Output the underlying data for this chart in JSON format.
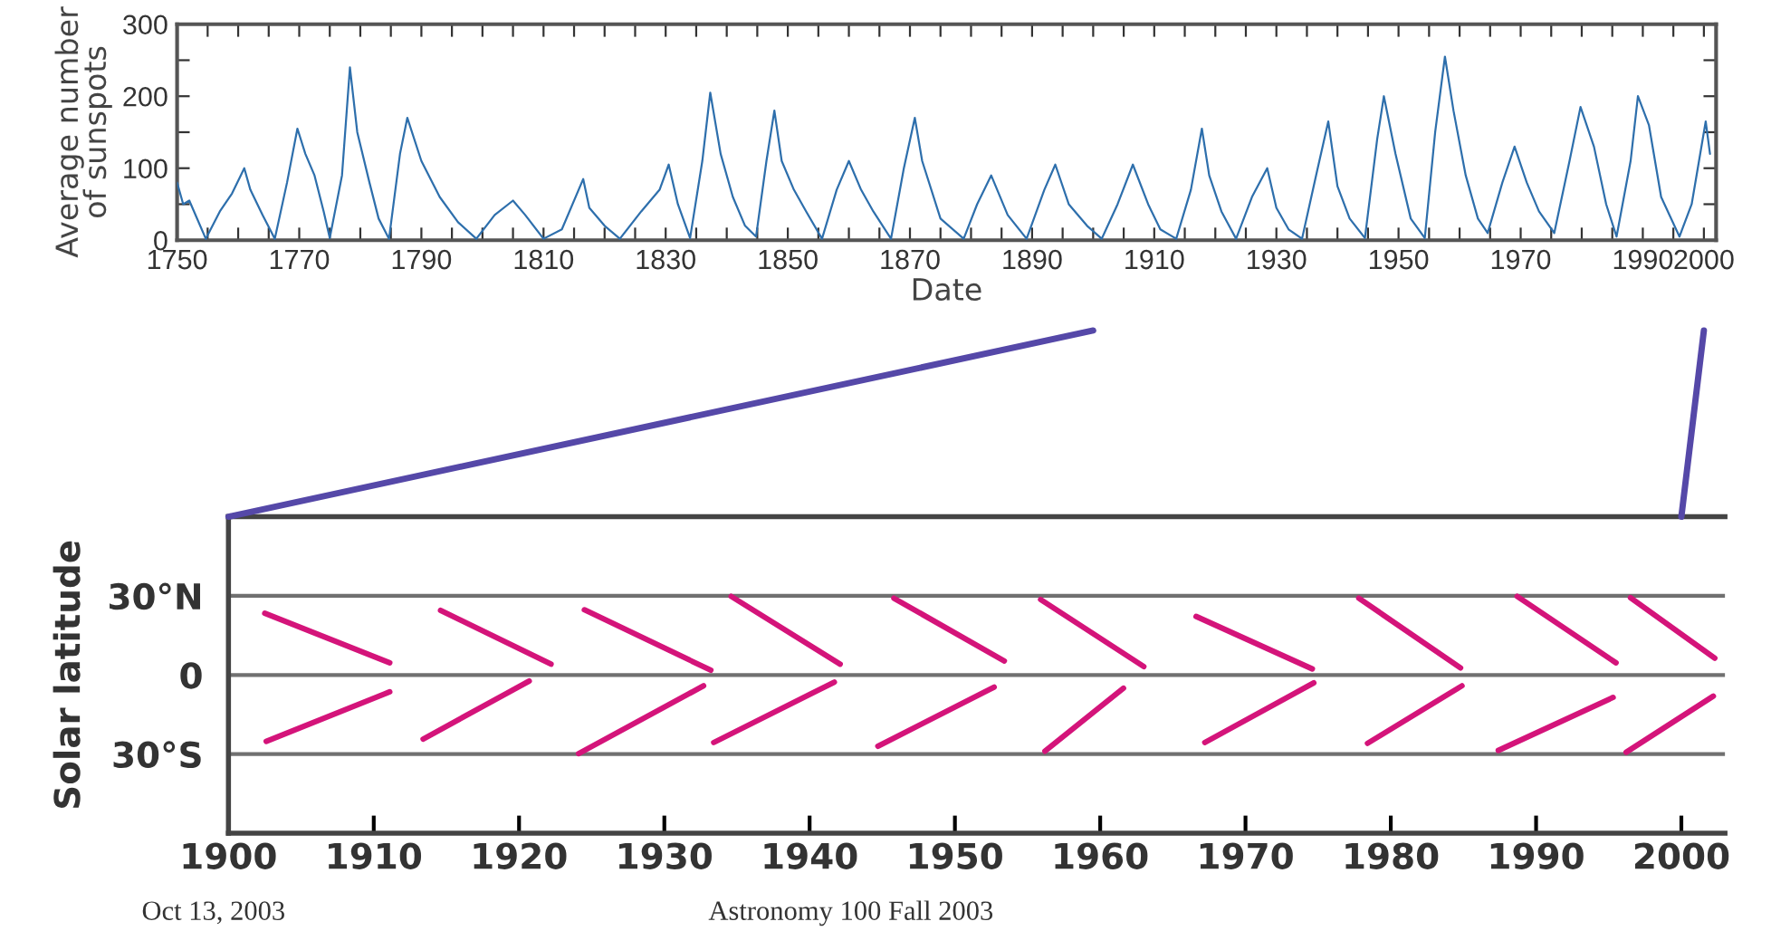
{
  "chart_data": [
    {
      "type": "line",
      "xlabel": "Date",
      "ylabel": "Average number\nof sunspots",
      "color": "#2e6fac",
      "x": [
        1750,
        1751,
        1752,
        1754.7,
        1757,
        1759,
        1761,
        1762,
        1764,
        1766,
        1768,
        1769.7,
        1771,
        1772.5,
        1774,
        1775,
        1777,
        1778.3,
        1779.5,
        1781.5,
        1783,
        1784.7,
        1786.5,
        1787.7,
        1790,
        1793,
        1796,
        1799,
        1802,
        1805,
        1807,
        1810,
        1813,
        1816.5,
        1817.5,
        1820,
        1822.5,
        1826,
        1829,
        1830.5,
        1832,
        1834,
        1836,
        1837.3,
        1839,
        1841,
        1843,
        1844.8,
        1846.5,
        1847.8,
        1849,
        1851,
        1853,
        1855.6,
        1858,
        1860,
        1862,
        1864,
        1866.9,
        1869,
        1870.8,
        1872,
        1875,
        1878.8,
        1881,
        1883.3,
        1886,
        1889.1,
        1892,
        1893.8,
        1896,
        1899,
        1901.4,
        1904,
        1906.5,
        1909,
        1911,
        1913.6,
        1916,
        1917.8,
        1919,
        1921,
        1923.4,
        1926,
        1928.5,
        1930,
        1932,
        1934.2,
        1936.5,
        1938.5,
        1940,
        1942,
        1944.5,
        1946.5,
        1947.6,
        1949.5,
        1952,
        1954.3,
        1956,
        1957.6,
        1959,
        1961,
        1963,
        1964.6,
        1967,
        1969,
        1971,
        1973,
        1975.5,
        1978,
        1979.8,
        1982,
        1984,
        1985.7,
        1988,
        1989.2,
        1991,
        1993,
        1996,
        1998,
        2000.3,
        2001
      ],
      "values": [
        80,
        50,
        55,
        2,
        40,
        65,
        100,
        70,
        35,
        2,
        80,
        155,
        120,
        90,
        40,
        3,
        90,
        240,
        150,
        80,
        30,
        2,
        120,
        170,
        110,
        60,
        25,
        2,
        35,
        55,
        35,
        2,
        15,
        85,
        45,
        20,
        2,
        40,
        70,
        105,
        50,
        3,
        110,
        205,
        120,
        60,
        20,
        5,
        110,
        180,
        110,
        70,
        40,
        2,
        70,
        110,
        70,
        40,
        2,
        100,
        170,
        110,
        30,
        2,
        50,
        90,
        35,
        2,
        70,
        105,
        50,
        20,
        2,
        50,
        105,
        50,
        15,
        2,
        70,
        155,
        90,
        40,
        2,
        60,
        100,
        45,
        15,
        2,
        90,
        165,
        75,
        30,
        3,
        140,
        200,
        120,
        30,
        3,
        150,
        255,
        180,
        90,
        30,
        10,
        80,
        130,
        80,
        40,
        10,
        110,
        185,
        130,
        50,
        5,
        110,
        200,
        160,
        60,
        5,
        50,
        165,
        120
      ],
      "xlim": [
        1750,
        2002
      ],
      "ylim": [
        0,
        300
      ],
      "xticks": [
        1750,
        {
          "value": 1755,
          "label": null
        },
        {
          "value": 1760,
          "label": null
        },
        {
          "value": 1765,
          "label": null
        },
        1770,
        {
          "value": 1775,
          "label": null
        },
        {
          "value": 1780,
          "label": null
        },
        {
          "value": 1785,
          "label": null
        },
        1790,
        {
          "value": 1795,
          "label": null
        },
        {
          "value": 1800,
          "label": null
        },
        {
          "value": 1805,
          "label": null
        },
        1810,
        {
          "value": 1815,
          "label": null
        },
        {
          "value": 1820,
          "label": null
        },
        {
          "value": 1825,
          "label": null
        },
        1830,
        {
          "value": 1835,
          "label": null
        },
        {
          "value": 1840,
          "label": null
        },
        {
          "value": 1845,
          "label": null
        },
        1850,
        {
          "value": 1855,
          "label": null
        },
        {
          "value": 1860,
          "label": null
        },
        {
          "value": 1865,
          "label": null
        },
        1870,
        {
          "value": 1875,
          "label": null
        },
        {
          "value": 1880,
          "label": null
        },
        {
          "value": 1885,
          "label": null
        },
        1890,
        {
          "value": 1895,
          "label": null
        },
        {
          "value": 1900,
          "label": null
        },
        {
          "value": 1905,
          "label": null
        },
        1910,
        {
          "value": 1915,
          "label": null
        },
        {
          "value": 1920,
          "label": null
        },
        {
          "value": 1925,
          "label": null
        },
        1930,
        {
          "value": 1935,
          "label": null
        },
        {
          "value": 1940,
          "label": null
        },
        {
          "value": 1945,
          "label": null
        },
        1950,
        {
          "value": 1955,
          "label": null
        },
        {
          "value": 1960,
          "label": null
        },
        {
          "value": 1965,
          "label": null
        },
        1970,
        {
          "value": 1975,
          "label": null
        },
        {
          "value": 1980,
          "label": null
        },
        {
          "value": 1985,
          "label": null
        },
        1990,
        {
          "value": 1995,
          "label": null
        },
        2000
      ],
      "yticks": [
        0,
        {
          "value": 50,
          "label": null
        },
        100,
        {
          "value": 150,
          "label": null
        },
        200,
        {
          "value": 250,
          "label": null
        },
        300
      ],
      "grid": false,
      "legend": false,
      "marker": "none",
      "line_style": "solid"
    },
    {
      "type": "line",
      "ylabel": "Solar latitude",
      "xlim": [
        1900,
        2003
      ],
      "ylim": [
        -60,
        60
      ],
      "xticks": [
        1900,
        1910,
        1920,
        1930,
        1940,
        1950,
        1960,
        1970,
        1980,
        1990,
        2000
      ],
      "yticks": [
        {
          "value": 30,
          "label": "30°N"
        },
        0,
        {
          "value": -30,
          "label": "30°S"
        }
      ],
      "grid": "y",
      "legend": false,
      "marker": "none",
      "line_style": "solid",
      "annotations": [
        "Oct 13, 2003",
        "Astronomy 100 Fall 2003"
      ],
      "series": [
        {
          "color": "#d4147a",
          "x": [
            1902.5,
            1911.1
          ],
          "values": [
            23.4,
            4.6
          ]
        },
        {
          "color": "#d4147a",
          "x": [
            1902.6,
            1911.1
          ],
          "values": [
            -25.2,
            -6.4
          ]
        },
        {
          "color": "#d4147a",
          "x": [
            1914.6,
            1922.2
          ],
          "values": [
            24.5,
            4.1
          ]
        },
        {
          "color": "#d4147a",
          "x": [
            1913.4,
            1920.7
          ],
          "values": [
            -24.3,
            -2.3
          ]
        },
        {
          "color": "#d4147a",
          "x": [
            1924.5,
            1933.2
          ],
          "values": [
            24.7,
            1.8
          ]
        },
        {
          "color": "#d4147a",
          "x": [
            1924.1,
            1932.7
          ],
          "values": [
            -29.8,
            -4.1
          ]
        },
        {
          "color": "#d4147a",
          "x": [
            1934.6,
            1942.1
          ],
          "values": [
            29.8,
            4.1
          ]
        },
        {
          "color": "#d4147a",
          "x": [
            1933.4,
            1941.7
          ],
          "values": [
            -25.6,
            -2.7
          ]
        },
        {
          "color": "#d4147a",
          "x": [
            1945.8,
            1953.4
          ],
          "values": [
            29.1,
            5.3
          ]
        },
        {
          "color": "#d4147a",
          "x": [
            1944.7,
            1952.7
          ],
          "values": [
            -27.0,
            -4.6
          ]
        },
        {
          "color": "#d4147a",
          "x": [
            1955.9,
            1963.0
          ],
          "values": [
            28.6,
            3.2
          ]
        },
        {
          "color": "#d4147a",
          "x": [
            1956.2,
            1961.6
          ],
          "values": [
            -28.9,
            -5.0
          ]
        },
        {
          "color": "#d4147a",
          "x": [
            1966.6,
            1974.6
          ],
          "values": [
            22.2,
            2.3
          ]
        },
        {
          "color": "#d4147a",
          "x": [
            1967.2,
            1974.7
          ],
          "values": [
            -25.6,
            -3.0
          ]
        },
        {
          "color": "#d4147a",
          "x": [
            1977.8,
            1984.8
          ],
          "values": [
            29.1,
            2.7
          ]
        },
        {
          "color": "#d4147a",
          "x": [
            1978.4,
            1984.9
          ],
          "values": [
            -25.9,
            -4.1
          ]
        },
        {
          "color": "#d4147a",
          "x": [
            1988.7,
            1995.5
          ],
          "values": [
            29.8,
            4.6
          ]
        },
        {
          "color": "#d4147a",
          "x": [
            1987.4,
            1995.3
          ],
          "values": [
            -28.6,
            -8.5
          ]
        },
        {
          "color": "#d4147a",
          "x": [
            1996.5,
            2002.3
          ],
          "values": [
            29.3,
            6.4
          ]
        },
        {
          "color": "#d4147a",
          "x": [
            1996.2,
            2002.2
          ],
          "values": [
            -29.3,
            -8.0
          ]
        }
      ]
    }
  ]
}
